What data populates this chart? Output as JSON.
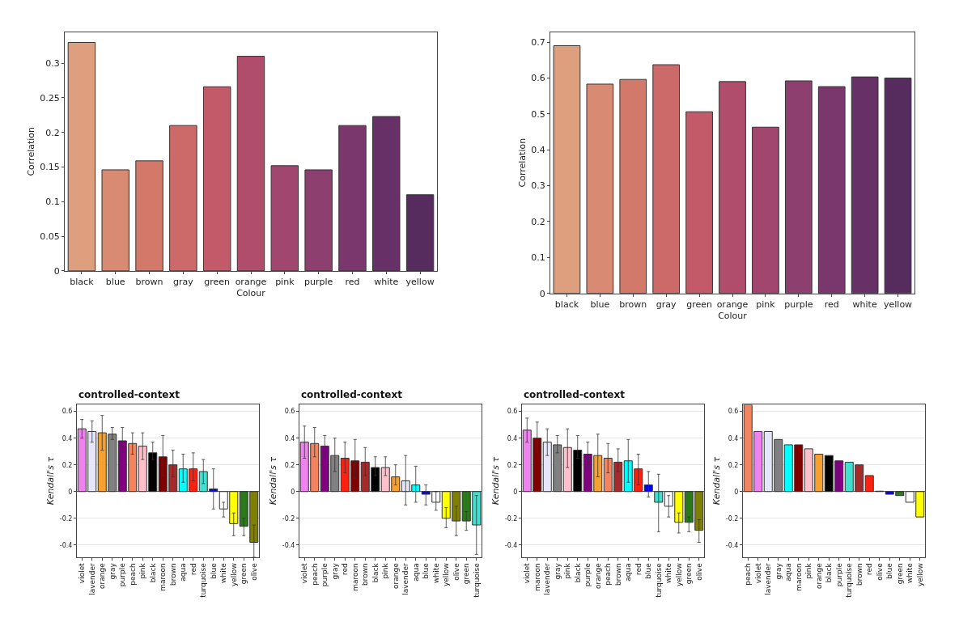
{
  "chart_data": [
    {
      "type": "bar",
      "categories": [
        "black",
        "blue",
        "brown",
        "gray",
        "green",
        "orange",
        "pink",
        "purple",
        "red",
        "white",
        "yellow"
      ],
      "values": [
        0.33,
        0.146,
        0.159,
        0.21,
        0.266,
        0.31,
        0.152,
        0.146,
        0.21,
        0.223,
        0.11
      ],
      "colors": [
        "#dd9f7e",
        "#d98a72",
        "#d3796a",
        "#cb6a68",
        "#c25a6a",
        "#b04d6c",
        "#a1466f",
        "#8d406f",
        "#7a376d",
        "#673067",
        "#562c5f"
      ],
      "xlabel": "Colour",
      "ylabel": "Correlation",
      "ylim": [
        0,
        0.345
      ],
      "yticks": [
        0.0,
        0.05,
        0.1,
        0.15,
        0.2,
        0.25,
        0.3
      ]
    },
    {
      "type": "bar",
      "categories": [
        "black",
        "blue",
        "brown",
        "gray",
        "green",
        "orange",
        "pink",
        "purple",
        "red",
        "white",
        "yellow"
      ],
      "values": [
        0.69,
        0.583,
        0.596,
        0.637,
        0.506,
        0.59,
        0.463,
        0.592,
        0.576,
        0.603,
        0.6
      ],
      "colors": [
        "#dd9f7e",
        "#d98a72",
        "#d3796a",
        "#cb6a68",
        "#c25a6a",
        "#b04d6c",
        "#a1466f",
        "#8d406f",
        "#7a376d",
        "#673067",
        "#562c5f"
      ],
      "xlabel": "Colour",
      "ylabel": "Correlation",
      "ylim": [
        0,
        0.728
      ],
      "yticks": [
        0.0,
        0.1,
        0.2,
        0.3,
        0.4,
        0.5,
        0.6,
        0.7
      ]
    },
    {
      "type": "bar",
      "title": "controlled-context",
      "ylabel": "Kendall's τ",
      "grid": "y",
      "ylim": [
        -0.49,
        0.65
      ],
      "yticks": [
        -0.4,
        -0.2,
        0,
        0.2,
        0.4,
        0.6
      ],
      "categories": [
        "violet",
        "lavender",
        "orange",
        "gray",
        "purple",
        "peach",
        "pink",
        "black",
        "maroon",
        "brown",
        "aqua",
        "red",
        "turquoise",
        "blue",
        "white",
        "yellow",
        "green",
        "olive"
      ],
      "values": [
        0.47,
        0.45,
        0.44,
        0.43,
        0.38,
        0.36,
        0.34,
        0.29,
        0.26,
        0.2,
        0.17,
        0.17,
        0.15,
        0.02,
        -0.13,
        -0.24,
        -0.26,
        -0.38
      ],
      "errors": [
        [
          0.4,
          0.54
        ],
        [
          0.37,
          0.53
        ],
        [
          0.31,
          0.57
        ],
        [
          0.39,
          0.48
        ],
        [
          0.28,
          0.48
        ],
        [
          0.28,
          0.44
        ],
        [
          0.24,
          0.44
        ],
        [
          0.24,
          0.37
        ],
        [
          0.12,
          0.42
        ],
        [
          0.11,
          0.31
        ],
        [
          0.07,
          0.28
        ],
        [
          0.08,
          0.29
        ],
        [
          0.06,
          0.24
        ],
        [
          -0.13,
          0.17
        ],
        [
          -0.19,
          -0.08
        ],
        [
          -0.33,
          -0.16
        ],
        [
          -0.33,
          -0.2
        ],
        [
          -0.49,
          -0.25
        ]
      ],
      "colors": [
        "#ee82ee",
        "#e6e6fa",
        "#f5a030",
        "#808080",
        "#800080",
        "#f4845f",
        "#ffc0cb",
        "#000000",
        "#800000",
        "#a52a2a",
        "#00ffff",
        "#ff2010",
        "#40e0d0",
        "#0000ff",
        "#ffffff",
        "#ffff00",
        "#2a7a1a",
        "#808000"
      ]
    },
    {
      "type": "bar",
      "title": "controlled-context",
      "ylabel": "Kendall's τ",
      "grid": "y",
      "ylim": [
        -0.49,
        0.65
      ],
      "yticks": [
        -0.4,
        -0.2,
        0,
        0.2,
        0.4,
        0.6
      ],
      "categories": [
        "violet",
        "peach",
        "purple",
        "gray",
        "red",
        "maroon",
        "brown",
        "black",
        "pink",
        "orange",
        "lavender",
        "aqua",
        "blue",
        "white",
        "yellow",
        "olive",
        "green",
        "turquoise"
      ],
      "values": [
        0.37,
        0.36,
        0.34,
        0.27,
        0.25,
        0.23,
        0.22,
        0.18,
        0.18,
        0.11,
        0.08,
        0.05,
        -0.02,
        -0.08,
        -0.2,
        -0.22,
        -0.22,
        -0.25
      ],
      "errors": [
        [
          0.25,
          0.49
        ],
        [
          0.26,
          0.48
        ],
        [
          0.27,
          0.42
        ],
        [
          0.15,
          0.4
        ],
        [
          0.14,
          0.37
        ],
        [
          0.1,
          0.39
        ],
        [
          0.12,
          0.33
        ],
        [
          0.12,
          0.26
        ],
        [
          0.12,
          0.26
        ],
        [
          0.05,
          0.2
        ],
        [
          -0.1,
          0.27
        ],
        [
          -0.08,
          0.19
        ],
        [
          -0.1,
          0.05
        ],
        [
          -0.14,
          0.0
        ],
        [
          -0.27,
          -0.12
        ],
        [
          -0.33,
          -0.11
        ],
        [
          -0.29,
          -0.15
        ],
        [
          -0.47,
          -0.03
        ]
      ],
      "colors": [
        "#ee82ee",
        "#f4845f",
        "#800080",
        "#808080",
        "#ff2010",
        "#800000",
        "#a52a2a",
        "#000000",
        "#ffc0cb",
        "#f5a030",
        "#e6e6fa",
        "#00ffff",
        "#0000ff",
        "#ffffff",
        "#ffff00",
        "#808000",
        "#2a7a1a",
        "#40e0d0"
      ]
    },
    {
      "type": "bar",
      "title": "controlled-context",
      "ylabel": "Kendall's τ",
      "grid": "y",
      "ylim": [
        -0.49,
        0.65
      ],
      "yticks": [
        -0.4,
        -0.2,
        0,
        0.2,
        0.4,
        0.6
      ],
      "categories": [
        "violet",
        "maroon",
        "lavender",
        "gray",
        "pink",
        "black",
        "purple",
        "orange",
        "peach",
        "brown",
        "aqua",
        "red",
        "blue",
        "turquoise",
        "white",
        "yellow",
        "green",
        "olive"
      ],
      "values": [
        0.46,
        0.4,
        0.37,
        0.35,
        0.33,
        0.31,
        0.28,
        0.27,
        0.25,
        0.22,
        0.23,
        0.17,
        0.05,
        -0.08,
        -0.11,
        -0.23,
        -0.23,
        -0.29
      ],
      "errors": [
        [
          0.37,
          0.55
        ],
        [
          0.29,
          0.52
        ],
        [
          0.27,
          0.47
        ],
        [
          0.29,
          0.42
        ],
        [
          0.18,
          0.47
        ],
        [
          0.25,
          0.42
        ],
        [
          0.17,
          0.37
        ],
        [
          0.11,
          0.43
        ],
        [
          0.14,
          0.36
        ],
        [
          0.15,
          0.32
        ],
        [
          0.07,
          0.39
        ],
        [
          0.05,
          0.28
        ],
        [
          -0.04,
          0.15
        ],
        [
          -0.3,
          0.13
        ],
        [
          -0.19,
          -0.03
        ],
        [
          -0.31,
          -0.16
        ],
        [
          -0.3,
          -0.19
        ],
        [
          -0.38,
          -0.21
        ]
      ],
      "colors": [
        "#ee82ee",
        "#800000",
        "#e6e6fa",
        "#808080",
        "#ffc0cb",
        "#000000",
        "#800080",
        "#f5a030",
        "#f4845f",
        "#a52a2a",
        "#00ffff",
        "#ff2010",
        "#0000ff",
        "#40e0d0",
        "#ffffff",
        "#ffff00",
        "#2a7a1a",
        "#808000"
      ]
    },
    {
      "type": "bar",
      "ylabel": "Kendall's τ",
      "grid": "y",
      "ylim": [
        -0.49,
        0.65
      ],
      "yticks": [
        -0.4,
        -0.2,
        0,
        0.2,
        0.4,
        0.6
      ],
      "categories": [
        "peach",
        "violet",
        "lavender",
        "gray",
        "aqua",
        "maroon",
        "pink",
        "orange",
        "black",
        "purple",
        "turquoise",
        "brown",
        "red",
        "olive",
        "blue",
        "green",
        "white",
        "yellow"
      ],
      "values": [
        0.65,
        0.45,
        0.45,
        0.39,
        0.35,
        0.35,
        0.32,
        0.28,
        0.27,
        0.23,
        0.22,
        0.2,
        0.12,
        0.003,
        -0.02,
        -0.03,
        -0.08,
        -0.19
      ],
      "colors": [
        "#f4845f",
        "#ee82ee",
        "#e6e6fa",
        "#808080",
        "#00ffff",
        "#800000",
        "#ffc0cb",
        "#f5a030",
        "#000000",
        "#800080",
        "#40e0d0",
        "#a52a2a",
        "#ff2010",
        "#808000",
        "#0000ff",
        "#2a7a1a",
        "#ffffff",
        "#ffff00"
      ]
    }
  ]
}
